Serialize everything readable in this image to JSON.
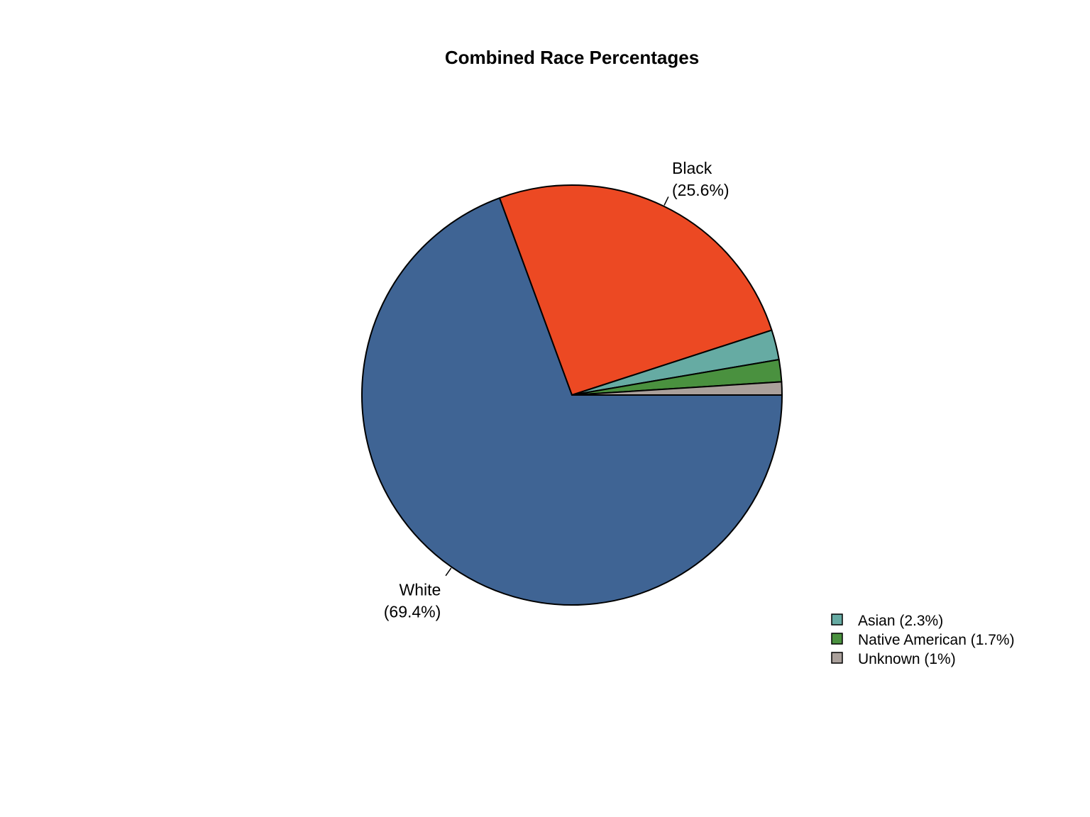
{
  "chart_data": {
    "type": "pie",
    "title": "Combined Race Percentages",
    "start_angle_deg": 0,
    "direction": "clockwise",
    "slices": [
      {
        "label": "White",
        "value": 69.4,
        "display": "(69.4%)",
        "color": "#3F6494",
        "labeled": true
      },
      {
        "label": "Black",
        "value": 25.6,
        "display": "(25.6%)",
        "color": "#EC4923",
        "labeled": true
      },
      {
        "label": "Asian",
        "value": 2.3,
        "display": "Asian (2.3%)",
        "color": "#66ABA3",
        "labeled": false
      },
      {
        "label": "Native American",
        "value": 1.7,
        "display": "Native American (1.7%)",
        "color": "#4A913F",
        "labeled": false
      },
      {
        "label": "Unknown",
        "value": 1.0,
        "display": "Unknown (1%)",
        "color": "#AAA09B",
        "labeled": false
      }
    ],
    "legend": {
      "position": "bottom-right",
      "entries": [
        "Asian (2.3%)",
        "Native American (1.7%)",
        "Unknown (1%)"
      ]
    }
  }
}
